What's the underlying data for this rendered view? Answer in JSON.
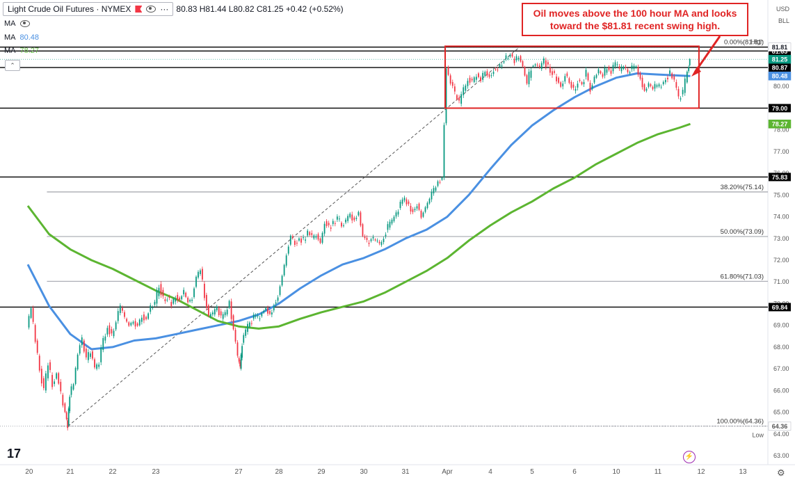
{
  "header": {
    "symbol": "Light Crude Oil Futures · NYMEX",
    "ohlc": "80.83  H81.44  L80.82  C81.25  +0.42 (+0.52%)"
  },
  "indicators": [
    {
      "label": "MA",
      "value": "",
      "color": "#2962ff",
      "hidden": true
    },
    {
      "label": "MA",
      "value": "80.48",
      "color": "#4a90e2"
    },
    {
      "label": "MA",
      "value": "78.27",
      "color": "#6abf4b"
    }
  ],
  "top_right": {
    "currency": "USD",
    "unit": "BLL",
    "high_label": "High",
    "low_label": "Low"
  },
  "annotation": "Oil moves above the 100 hour MA and looks toward the $81.81 recent swing high.",
  "logo": "17",
  "colors": {
    "up": "#089981",
    "down": "#f23645",
    "ma100": "#4a90e2",
    "ma200": "#5cb531",
    "box": "#e02424",
    "level": "#000000"
  },
  "chart_data": {
    "type": "candlestick",
    "title": "Light Crude Oil Futures · NYMEX",
    "ylim": [
      62.5,
      82.5
    ],
    "yticks": [
      "63.00",
      "64.00",
      "65.00",
      "66.00",
      "67.00",
      "68.00",
      "69.00",
      "70.00",
      "71.00",
      "72.00",
      "73.00",
      "74.00",
      "75.00",
      "76.00",
      "77.00",
      "78.00",
      "79.00",
      "80.00",
      "81.00"
    ],
    "xticks": [
      {
        "label": "20",
        "x": 0.03
      },
      {
        "label": "21",
        "x": 1.0
      },
      {
        "label": "22",
        "x": 2.0
      },
      {
        "label": "23",
        "x": 3.0
      },
      {
        "label": "27",
        "x": 5.0
      },
      {
        "label": "28",
        "x": 6.0
      },
      {
        "label": "29",
        "x": 7.0
      },
      {
        "label": "30",
        "x": 8.0
      },
      {
        "label": "31",
        "x": 9.0
      },
      {
        "label": "Apr",
        "x": 10.0
      },
      {
        "label": "4",
        "x": 11.0
      },
      {
        "label": "5",
        "x": 12.0
      },
      {
        "label": "6",
        "x": 13.0
      },
      {
        "label": "10",
        "x": 14.0
      },
      {
        "label": "11",
        "x": 15.0
      },
      {
        "label": "12",
        "x": 16.0
      },
      {
        "label": "13",
        "x": 17.0
      }
    ],
    "price_path": [
      [
        0.0,
        68.9
      ],
      [
        0.1,
        69.8
      ],
      [
        0.2,
        68.3
      ],
      [
        0.3,
        67.0
      ],
      [
        0.4,
        66.0
      ],
      [
        0.5,
        67.3
      ],
      [
        0.6,
        66.3
      ],
      [
        0.7,
        66.8
      ],
      [
        0.8,
        65.8
      ],
      [
        0.9,
        65.0
      ],
      [
        0.95,
        64.4
      ],
      [
        1.0,
        65.8
      ],
      [
        1.1,
        66.3
      ],
      [
        1.2,
        67.7
      ],
      [
        1.3,
        68.3
      ],
      [
        1.4,
        67.4
      ],
      [
        1.5,
        67.8
      ],
      [
        1.6,
        67.0
      ],
      [
        1.7,
        67.3
      ],
      [
        1.8,
        68.3
      ],
      [
        1.9,
        69.0
      ],
      [
        2.0,
        68.5
      ],
      [
        2.1,
        69.2
      ],
      [
        2.2,
        69.8
      ],
      [
        2.3,
        69.3
      ],
      [
        2.4,
        69.0
      ],
      [
        2.5,
        69.2
      ],
      [
        2.6,
        69.0
      ],
      [
        2.7,
        69.5
      ],
      [
        2.8,
        69.3
      ],
      [
        2.9,
        69.8
      ],
      [
        3.0,
        70.0
      ],
      [
        3.1,
        70.9
      ],
      [
        3.2,
        70.2
      ],
      [
        3.3,
        70.3
      ],
      [
        3.4,
        70.0
      ],
      [
        3.5,
        70.4
      ],
      [
        3.6,
        70.2
      ],
      [
        3.7,
        70.5
      ],
      [
        3.8,
        70.1
      ],
      [
        3.9,
        70.3
      ],
      [
        4.0,
        71.2
      ],
      [
        4.1,
        71.6
      ],
      [
        4.2,
        70.4
      ],
      [
        4.3,
        69.4
      ],
      [
        4.4,
        69.5
      ],
      [
        4.5,
        69.8
      ],
      [
        4.6,
        69.3
      ],
      [
        4.7,
        69.5
      ],
      [
        4.8,
        70.1
      ],
      [
        4.9,
        68.8
      ],
      [
        5.0,
        67.5
      ],
      [
        5.05,
        67.0
      ],
      [
        5.1,
        68.2
      ],
      [
        5.2,
        68.7
      ],
      [
        5.3,
        69.1
      ],
      [
        5.4,
        69.4
      ],
      [
        5.5,
        69.3
      ],
      [
        5.6,
        69.6
      ],
      [
        5.7,
        69.8
      ],
      [
        5.8,
        69.5
      ],
      [
        5.9,
        70.0
      ],
      [
        6.0,
        70.4
      ],
      [
        6.1,
        71.3
      ],
      [
        6.2,
        72.3
      ],
      [
        6.3,
        73.1
      ],
      [
        6.4,
        72.8
      ],
      [
        6.5,
        73.0
      ],
      [
        6.6,
        72.9
      ],
      [
        6.7,
        73.3
      ],
      [
        6.8,
        73.0
      ],
      [
        6.9,
        73.2
      ],
      [
        7.0,
        72.8
      ],
      [
        7.1,
        73.8
      ],
      [
        7.2,
        73.5
      ],
      [
        7.3,
        73.7
      ],
      [
        7.4,
        73.9
      ],
      [
        7.5,
        73.6
      ],
      [
        7.6,
        73.8
      ],
      [
        7.7,
        74.1
      ],
      [
        7.8,
        73.9
      ],
      [
        7.9,
        74.2
      ],
      [
        8.0,
        73.1
      ],
      [
        8.1,
        72.8
      ],
      [
        8.2,
        73.0
      ],
      [
        8.3,
        72.9
      ],
      [
        8.4,
        72.7
      ],
      [
        8.5,
        73.1
      ],
      [
        8.6,
        73.5
      ],
      [
        8.7,
        73.8
      ],
      [
        8.8,
        74.1
      ],
      [
        8.9,
        74.6
      ],
      [
        9.0,
        74.8
      ],
      [
        9.1,
        74.5
      ],
      [
        9.2,
        74.3
      ],
      [
        9.3,
        74.6
      ],
      [
        9.4,
        74.0
      ],
      [
        9.5,
        74.4
      ],
      [
        9.6,
        74.8
      ],
      [
        9.7,
        75.2
      ],
      [
        9.8,
        75.6
      ],
      [
        9.9,
        75.8
      ],
      [
        10.0,
        80.9
      ],
      [
        10.1,
        80.2
      ],
      [
        10.2,
        79.6
      ],
      [
        10.3,
        79.2
      ],
      [
        10.4,
        79.8
      ],
      [
        10.5,
        80.4
      ],
      [
        10.6,
        80.2
      ],
      [
        10.7,
        80.6
      ],
      [
        10.8,
        80.3
      ],
      [
        10.9,
        80.7
      ],
      [
        11.0,
        80.5
      ],
      [
        11.1,
        80.8
      ],
      [
        11.2,
        80.9
      ],
      [
        11.3,
        81.1
      ],
      [
        11.4,
        81.3
      ],
      [
        11.5,
        81.5
      ],
      [
        11.6,
        81.2
      ],
      [
        11.7,
        81.4
      ],
      [
        11.8,
        80.9
      ],
      [
        11.9,
        80.1
      ],
      [
        12.0,
        80.9
      ],
      [
        12.1,
        81.0
      ],
      [
        12.2,
        80.8
      ],
      [
        12.3,
        81.2
      ],
      [
        12.4,
        80.9
      ],
      [
        12.5,
        80.7
      ],
      [
        12.6,
        80.4
      ],
      [
        12.7,
        80.0
      ],
      [
        12.8,
        80.6
      ],
      [
        12.9,
        80.2
      ],
      [
        13.0,
        79.8
      ],
      [
        13.1,
        80.3
      ],
      [
        13.2,
        80.1
      ],
      [
        13.3,
        80.6
      ],
      [
        13.4,
        79.9
      ],
      [
        13.5,
        80.4
      ],
      [
        13.6,
        80.7
      ],
      [
        13.7,
        80.5
      ],
      [
        13.8,
        80.9
      ],
      [
        13.9,
        80.7
      ],
      [
        14.0,
        81.0
      ],
      [
        14.1,
        80.7
      ],
      [
        14.2,
        80.9
      ],
      [
        14.3,
        80.6
      ],
      [
        14.4,
        80.8
      ],
      [
        14.5,
        80.9
      ],
      [
        14.6,
        80.4
      ],
      [
        14.7,
        79.8
      ],
      [
        14.8,
        80.1
      ],
      [
        14.9,
        79.9
      ],
      [
        15.0,
        80.0
      ],
      [
        15.1,
        80.1
      ],
      [
        15.2,
        80.4
      ],
      [
        15.3,
        80.6
      ],
      [
        15.4,
        80.2
      ],
      [
        15.5,
        79.4
      ],
      [
        15.6,
        79.7
      ],
      [
        15.7,
        80.7
      ],
      [
        15.75,
        81.25
      ]
    ],
    "series": [
      {
        "name": "MA 80.48",
        "color": "#4a90e2",
        "points": [
          [
            0.0,
            71.8
          ],
          [
            0.5,
            69.9
          ],
          [
            1.0,
            68.6
          ],
          [
            1.5,
            67.9
          ],
          [
            2.0,
            68.0
          ],
          [
            2.5,
            68.3
          ],
          [
            3.0,
            68.4
          ],
          [
            3.5,
            68.6
          ],
          [
            4.0,
            68.8
          ],
          [
            4.5,
            69.0
          ],
          [
            5.0,
            69.2
          ],
          [
            5.5,
            69.5
          ],
          [
            6.0,
            70.0
          ],
          [
            6.5,
            70.7
          ],
          [
            7.0,
            71.3
          ],
          [
            7.5,
            71.8
          ],
          [
            8.0,
            72.1
          ],
          [
            8.5,
            72.5
          ],
          [
            9.0,
            73.0
          ],
          [
            9.5,
            73.4
          ],
          [
            10.0,
            74.0
          ],
          [
            10.5,
            75.0
          ],
          [
            11.0,
            76.2
          ],
          [
            11.5,
            77.3
          ],
          [
            12.0,
            78.2
          ],
          [
            12.5,
            78.9
          ],
          [
            13.0,
            79.5
          ],
          [
            13.5,
            80.0
          ],
          [
            14.0,
            80.4
          ],
          [
            14.5,
            80.6
          ],
          [
            15.0,
            80.55
          ],
          [
            15.5,
            80.5
          ],
          [
            15.75,
            80.48
          ]
        ]
      },
      {
        "name": "MA 78.27",
        "color": "#5cb531",
        "points": [
          [
            0.0,
            74.5
          ],
          [
            0.5,
            73.2
          ],
          [
            1.0,
            72.5
          ],
          [
            1.5,
            72.0
          ],
          [
            2.0,
            71.6
          ],
          [
            2.5,
            71.1
          ],
          [
            3.0,
            70.6
          ],
          [
            3.5,
            70.2
          ],
          [
            4.0,
            69.7
          ],
          [
            4.5,
            69.2
          ],
          [
            5.0,
            68.95
          ],
          [
            5.5,
            68.85
          ],
          [
            6.0,
            68.95
          ],
          [
            6.5,
            69.3
          ],
          [
            7.0,
            69.6
          ],
          [
            7.5,
            69.85
          ],
          [
            8.0,
            70.1
          ],
          [
            8.5,
            70.5
          ],
          [
            9.0,
            71.0
          ],
          [
            9.5,
            71.5
          ],
          [
            10.0,
            72.1
          ],
          [
            10.5,
            72.9
          ],
          [
            11.0,
            73.6
          ],
          [
            11.5,
            74.2
          ],
          [
            12.0,
            74.7
          ],
          [
            12.5,
            75.3
          ],
          [
            13.0,
            75.8
          ],
          [
            13.5,
            76.4
          ],
          [
            14.0,
            76.9
          ],
          [
            14.5,
            77.4
          ],
          [
            15.0,
            77.8
          ],
          [
            15.5,
            78.1
          ],
          [
            15.75,
            78.27
          ]
        ]
      }
    ],
    "levels": [
      {
        "price": 81.81,
        "label": "81.81"
      },
      {
        "price": 81.63,
        "label": "81.63"
      },
      {
        "price": 80.87,
        "label": "80.87"
      },
      {
        "price": 79.0,
        "label": "79.00"
      },
      {
        "price": 75.83,
        "label": "75.83"
      },
      {
        "price": 69.84,
        "label": "69.84"
      }
    ],
    "price_tags": [
      {
        "price": 81.81,
        "label": "81.81",
        "bg": "#ffffff",
        "fg": "#131722"
      },
      {
        "price": 81.25,
        "label": "81.25",
        "bg": "#089981",
        "fg": "#ffffff"
      },
      {
        "price": 80.48,
        "label": "80.48",
        "bg": "#4a90e2",
        "fg": "#ffffff"
      },
      {
        "price": 78.27,
        "label": "78.27",
        "bg": "#5cb531",
        "fg": "#ffffff"
      },
      {
        "price": 64.36,
        "label": "64.36",
        "bg": "#ffffff",
        "fg": "#555555"
      }
    ],
    "fibonacci": [
      {
        "price": 81.81,
        "label": "0.00%(81.81)"
      },
      {
        "price": 75.14,
        "label": "38.20%(75.14)"
      },
      {
        "price": 73.09,
        "label": "50.00%(73.09)"
      },
      {
        "price": 71.03,
        "label": "61.80%(71.03)"
      },
      {
        "price": 64.36,
        "label": "100.00%(64.36)"
      }
    ],
    "trendline": {
      "from": [
        0.95,
        64.36
      ],
      "to": [
        11.7,
        81.81
      ]
    },
    "box": {
      "x0": 9.95,
      "x1": 15.95,
      "y0": 79.0,
      "y1": 81.85
    }
  }
}
